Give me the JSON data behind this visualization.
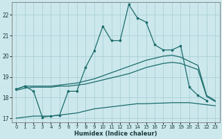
{
  "xlabel": "Humidex (Indice chaleur)",
  "background_color": "#cce8ec",
  "grid_color": "#aad0d8",
  "line_color": "#1a6b6b",
  "xlim": [
    -0.5,
    23.5
  ],
  "ylim": [
    16.8,
    22.6
  ],
  "yticks": [
    17,
    18,
    19,
    20,
    21,
    22
  ],
  "xticks": [
    0,
    1,
    2,
    3,
    4,
    5,
    6,
    7,
    8,
    9,
    10,
    11,
    12,
    13,
    14,
    15,
    16,
    17,
    18,
    19,
    20,
    21,
    22,
    23
  ],
  "line1_x": [
    0,
    1,
    2,
    3,
    4,
    5,
    6,
    7,
    8,
    9,
    10,
    11,
    12,
    13,
    14,
    15,
    16,
    17,
    18,
    19,
    20,
    21,
    22,
    23
  ],
  "line1_y": [
    18.4,
    18.55,
    18.3,
    17.05,
    17.1,
    17.15,
    18.3,
    18.3,
    19.45,
    20.25,
    21.45,
    20.75,
    20.75,
    22.5,
    21.85,
    21.65,
    20.55,
    20.3,
    20.3,
    20.5,
    18.5,
    18.1,
    17.85,
    null
  ],
  "line1_markers": true,
  "line2_x": [
    0,
    1,
    2,
    3,
    4,
    5,
    6,
    7,
    8,
    9,
    10,
    11,
    12,
    13,
    14,
    15,
    16,
    17,
    18,
    19,
    20,
    21,
    22,
    23
  ],
  "line2_y": [
    18.4,
    18.55,
    18.55,
    18.55,
    18.55,
    18.6,
    18.65,
    18.7,
    18.8,
    18.9,
    19.05,
    19.2,
    19.35,
    19.5,
    19.65,
    19.8,
    19.9,
    20.0,
    20.05,
    19.95,
    19.75,
    19.55,
    18.1,
    17.85
  ],
  "line3_x": [
    0,
    1,
    2,
    3,
    4,
    5,
    6,
    7,
    8,
    9,
    10,
    11,
    12,
    13,
    14,
    15,
    16,
    17,
    18,
    19,
    20,
    21,
    22,
    23
  ],
  "line3_y": [
    18.35,
    18.45,
    18.5,
    18.5,
    18.5,
    18.55,
    18.55,
    18.6,
    18.65,
    18.75,
    18.85,
    18.95,
    19.05,
    19.15,
    19.3,
    19.45,
    19.55,
    19.65,
    19.7,
    19.65,
    19.5,
    19.35,
    18.05,
    17.8
  ],
  "line4_x": [
    0,
    1,
    2,
    3,
    4,
    5,
    6,
    7,
    8,
    9,
    10,
    11,
    12,
    13,
    14,
    15,
    16,
    17,
    18,
    19,
    20,
    21,
    22,
    23
  ],
  "line4_y": [
    17.0,
    17.05,
    17.1,
    17.1,
    17.1,
    17.15,
    17.2,
    17.25,
    17.35,
    17.45,
    17.5,
    17.55,
    17.6,
    17.65,
    17.7,
    17.7,
    17.72,
    17.73,
    17.75,
    17.75,
    17.75,
    17.7,
    17.65,
    17.6
  ]
}
